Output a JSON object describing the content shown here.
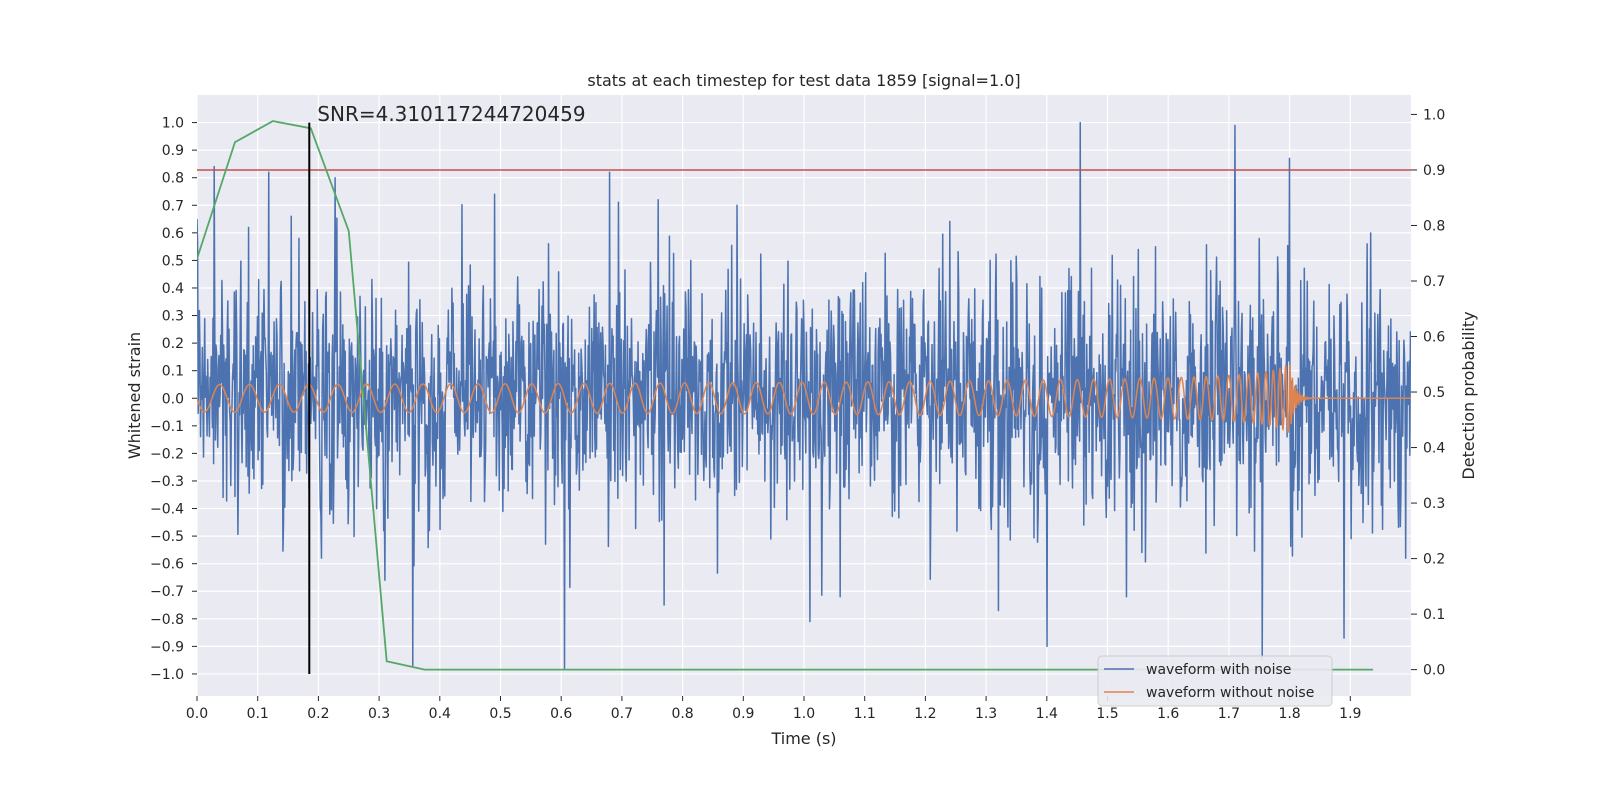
{
  "chart_data": {
    "type": "line",
    "title": "stats at each timestep for test data 1859 [signal=1.0]",
    "xlabel": "Time (s)",
    "ylabel_left": "Whitened strain",
    "ylabel_right": "Detection probability",
    "xlim": [
      0.0,
      2.0
    ],
    "ylim_left": [
      -1.08,
      1.1
    ],
    "ylim_right": [
      -0.0475,
      1.035
    ],
    "x_ticks": [
      0.0,
      0.1,
      0.2,
      0.3,
      0.4,
      0.5,
      0.6,
      0.7,
      0.8,
      0.9,
      1.0,
      1.1,
      1.2,
      1.3,
      1.4,
      1.5,
      1.6,
      1.7,
      1.8,
      1.9
    ],
    "x_tick_labels": [
      "0.0",
      "0.1",
      "0.2",
      "0.3",
      "0.4",
      "0.5",
      "0.6",
      "0.7",
      "0.8",
      "0.9",
      "1.0",
      "1.1",
      "1.2",
      "1.3",
      "1.4",
      "1.5",
      "1.6",
      "1.7",
      "1.8",
      "1.9"
    ],
    "y_left_ticks": [
      1.0,
      0.9,
      0.8,
      0.7,
      0.6,
      0.5,
      0.4,
      0.3,
      0.2,
      0.1,
      0.0,
      -0.1,
      -0.2,
      -0.3,
      -0.4,
      -0.5,
      -0.6,
      -0.7,
      -0.8,
      -0.9,
      -1.0
    ],
    "y_left_tick_labels": [
      "1.0",
      "0.9",
      "0.8",
      "0.7",
      "0.6",
      "0.5",
      "0.4",
      "0.3",
      "0.2",
      "0.1",
      "0.0",
      "−0.1",
      "−0.2",
      "−0.3",
      "−0.4",
      "−0.5",
      "−0.6",
      "−0.7",
      "−0.8",
      "−0.9",
      "−1.0"
    ],
    "y_right_ticks": [
      1.0,
      0.9,
      0.8,
      0.7,
      0.6,
      0.5,
      0.4,
      0.3,
      0.2,
      0.1,
      0.0
    ],
    "y_right_tick_labels": [
      "1.0",
      "0.9",
      "0.8",
      "0.7",
      "0.6",
      "0.5",
      "0.4",
      "0.3",
      "0.2",
      "0.1",
      "0.0"
    ],
    "annotation": "SNR=4.310117244720459",
    "annotation_x": 0.185,
    "threshold_right": 0.9,
    "marker_line": {
      "x": 0.185,
      "y_from": -1.0,
      "y_to": 1.0
    },
    "series": [
      {
        "name": "waveform with noise",
        "axis": "left",
        "color": "#4c72b0",
        "samples_per_second": 1024,
        "amplitude": 0.22,
        "spikes": [
          [
            0.0,
            0.65
          ],
          [
            0.028,
            0.84
          ],
          [
            0.085,
            0.62
          ],
          [
            0.118,
            0.82
          ],
          [
            0.155,
            0.66
          ],
          [
            0.168,
            0.58
          ],
          [
            0.205,
            -0.58
          ],
          [
            0.228,
            0.8
          ],
          [
            0.31,
            -0.66
          ],
          [
            0.355,
            -0.97
          ],
          [
            0.49,
            0.74
          ],
          [
            0.605,
            -0.98
          ],
          [
            0.68,
            0.82
          ],
          [
            0.76,
            0.72
          ],
          [
            0.77,
            -0.75
          ],
          [
            0.89,
            0.7
          ],
          [
            1.01,
            -0.81
          ],
          [
            1.06,
            -0.72
          ],
          [
            1.32,
            -0.77
          ],
          [
            1.4,
            -0.9
          ],
          [
            1.455,
            1.0
          ],
          [
            1.71,
            0.99
          ],
          [
            1.755,
            -0.95
          ],
          [
            1.8,
            0.87
          ],
          [
            1.89,
            -0.87
          ]
        ]
      },
      {
        "name": "waveform without noise",
        "axis": "left",
        "color": "#dd8452",
        "chirp": {
          "start_time": 0.0,
          "coalescence_time": 1.8,
          "base_frequency_hz": 20,
          "amplitude_start": 0.025,
          "amplitude_peak": 0.13,
          "ringdown_tau": 0.008
        }
      },
      {
        "name": "detection probability",
        "axis": "right",
        "color": "#55a868",
        "x": [
          0.0,
          0.0625,
          0.125,
          0.1875,
          0.25,
          0.3125,
          0.375,
          0.4375,
          1.9375
        ],
        "y": [
          0.74,
          0.95,
          0.988,
          0.975,
          0.79,
          0.015,
          0.0,
          0.0,
          0.0
        ]
      }
    ],
    "legend": {
      "position": "lower-right",
      "entries": [
        {
          "label": "waveform with noise",
          "color": "#4c72b0"
        },
        {
          "label": "waveform without noise",
          "color": "#dd8452"
        }
      ]
    },
    "style": {
      "plot_background": "#eaeaf2",
      "grid_color": "#ffffff",
      "threshold_color": "#c44e52",
      "marker_line_color": "#000000"
    }
  }
}
